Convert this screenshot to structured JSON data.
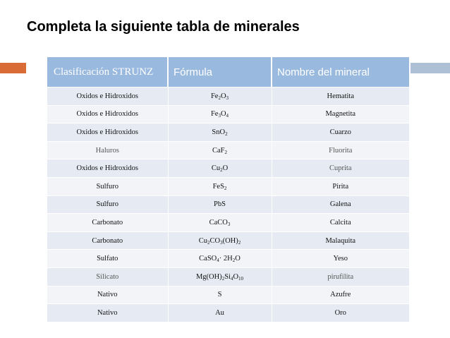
{
  "title": "Completa la siguiente tabla de minerales",
  "table": {
    "headers": [
      "Clasificación STRUNZ",
      "Fórmula",
      "Nombre del mineral"
    ],
    "rows": [
      {
        "clasificacion": "Oxidos e Hidroxidos",
        "formula": "Fe2O3",
        "nombre": "Hematita"
      },
      {
        "clasificacion": "Oxidos e Hidroxidos",
        "formula": "Fe3O4",
        "nombre": "Magnetita"
      },
      {
        "clasificacion": "Oxidos e Hidroxidos",
        "formula": "SnO2",
        "nombre": "Cuarzo"
      },
      {
        "clasificacion": "Haluros",
        "formula": "CaF2",
        "nombre": "Fluorita"
      },
      {
        "clasificacion": "Oxidos e Hidroxidos",
        "formula": "Cu2O",
        "nombre": "Cuprita"
      },
      {
        "clasificacion": "Sulfuro",
        "formula": "FeS2",
        "nombre": "Pirita"
      },
      {
        "clasificacion": "Sulfuro",
        "formula": "PbS",
        "nombre": "Galena"
      },
      {
        "clasificacion": "Carbonato",
        "formula": "CaCO3",
        "nombre": "Calcita"
      },
      {
        "clasificacion": "Carbonato",
        "formula": "Cu2CO3(OH)2",
        "nombre": "Malaquita"
      },
      {
        "clasificacion": "Sulfato",
        "formula": "CaSO4·2H2O",
        "nombre": "Yeso"
      },
      {
        "clasificacion": "Silicato",
        "formula": "Mg(OH)2Si4O10",
        "nombre": "pirufilita"
      },
      {
        "clasificacion": "Nativo",
        "formula": "S",
        "nombre": "Azufre"
      },
      {
        "clasificacion": "Nativo",
        "formula": "Au",
        "nombre": "Oro"
      }
    ]
  },
  "colors": {
    "header_bg": "#9ab9de",
    "row_odd": "#e6ebf3",
    "row_even": "#f2f4f8",
    "accent_orange": "#d86b36",
    "accent_blue": "#aec0d5"
  }
}
